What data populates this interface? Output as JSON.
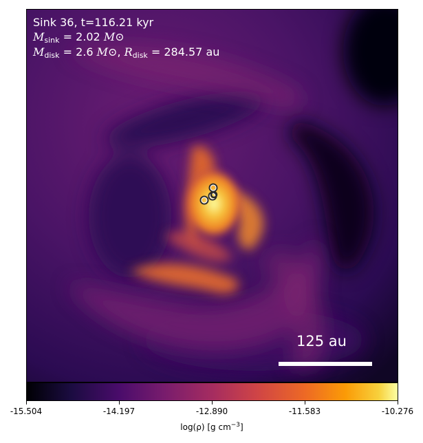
{
  "annotations": {
    "line1": "Sink 36, t=116.21 kyr",
    "msink_symbol": "M",
    "msink_sub": "sink",
    "msink_value": " = 2.02 ",
    "mdisk_symbol": "M",
    "mdisk_sub": "disk",
    "mdisk_value": " = 2.6 ",
    "rdisk_symbol": "R",
    "rdisk_sub": "disk",
    "rdisk_value": " = 284.57 au",
    "solar_mass": "M⊙"
  },
  "scale_bar": {
    "label": "125 au"
  },
  "colorbar": {
    "colormap": "inferno",
    "ticks": [
      "-15.504",
      "-14.197",
      "-12.890",
      "-11.583",
      "-10.276"
    ],
    "label_prefix": "log(ρ) [g cm",
    "label_exp": "−3",
    "label_suffix": "]"
  },
  "sinks_count": 4,
  "colors": {
    "ring": "#ffffff",
    "ring_stroke": "#2a2a2a"
  }
}
